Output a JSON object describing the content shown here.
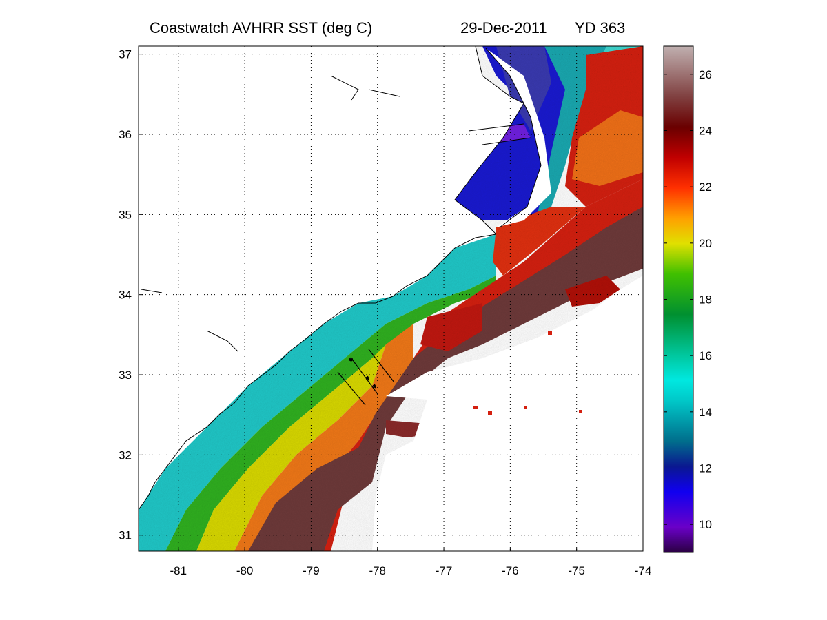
{
  "title": {
    "product": "Coastwatch   AVHRR   SST  (deg C)",
    "date": "29-Dec-2011",
    "yearday": "YD 363"
  },
  "map": {
    "lon_ticks": [
      -81,
      -80,
      -79,
      -78,
      -77,
      -76,
      -75,
      -74
    ],
    "lat_ticks": [
      31,
      32,
      33,
      34,
      35,
      36,
      37
    ],
    "lon_range": [
      -81.6,
      -74
    ],
    "lat_range": [
      30.8,
      37.1
    ],
    "grid": "dotted"
  },
  "colorbar": {
    "ticks": [
      10,
      12,
      14,
      16,
      18,
      20,
      22,
      24,
      26
    ],
    "range": [
      9,
      27
    ],
    "colors": [
      "#2a0042",
      "#6a00c8",
      "#0000e6",
      "#0a2a8c",
      "#008c8c",
      "#00e0e0",
      "#00c080",
      "#00a020",
      "#60d000",
      "#e6e600",
      "#ff9000",
      "#e61e00",
      "#7a0000",
      "#6a3030",
      "#b4a0a0"
    ]
  },
  "colors": {
    "gulf_stream_core": "#6e3a3a",
    "warm_red": "#d42010",
    "orange": "#f07018",
    "yellow": "#d8d800",
    "green": "#3cb414",
    "cyan_shelf": "#20c8c8",
    "cold_sound": "#1010d8",
    "land": "#ffffff",
    "coastline": "#000000"
  }
}
